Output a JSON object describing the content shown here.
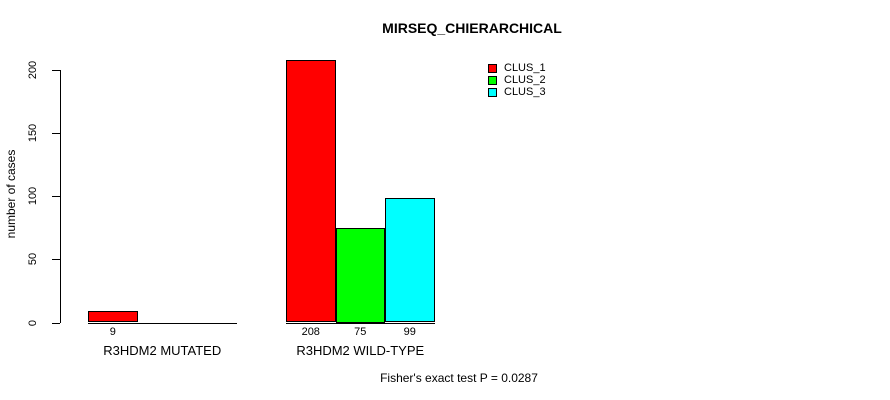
{
  "chart_data": {
    "type": "bar",
    "title": "MIRSEQ_CHIERARCHICAL",
    "ylabel": "number of cases",
    "xlabel": "",
    "annotation": "Fisher's exact test P = 0.0287",
    "ylim": [
      0,
      200
    ],
    "yticks": [
      0,
      50,
      100,
      150,
      200
    ],
    "categories": [
      "R3HDM2 MUTATED",
      "R3HDM2 WILD-TYPE"
    ],
    "series": [
      {
        "name": "CLUS_1",
        "color": "#ff0000",
        "values": [
          9,
          208
        ]
      },
      {
        "name": "CLUS_2",
        "color": "#00ff00",
        "values": [
          0,
          75
        ]
      },
      {
        "name": "CLUS_3",
        "color": "#00ffff",
        "values": [
          0,
          99
        ]
      }
    ],
    "bar_value_labels": [
      [
        "9",
        "",
        ""
      ],
      [
        "208",
        "75",
        "99"
      ]
    ],
    "legend_position": "top-right",
    "grid": false
  }
}
